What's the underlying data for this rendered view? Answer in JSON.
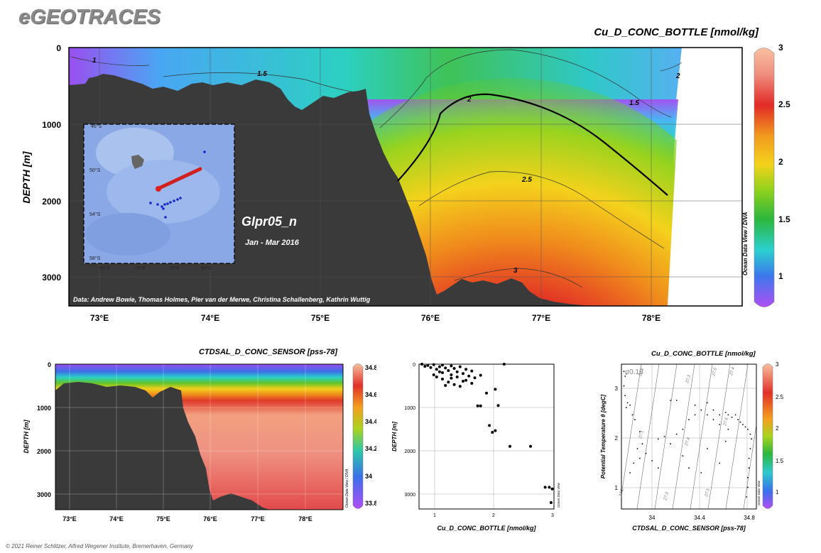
{
  "app": {
    "logo": "eGEOTRACES",
    "copyright": "© 2021 Reiner Schlitzer, Alfred Wegener Institute, Bremerhaven, Germany"
  },
  "main": {
    "title": "Cu_D_CONC_BOTTLE [nmol/kg]",
    "ylabel": "DEPTH [m]",
    "xticks": [
      "73°E",
      "74°E",
      "75°E",
      "76°E",
      "77°E",
      "78°E"
    ],
    "yticks": [
      "0",
      "1000",
      "2000",
      "3000"
    ],
    "colorbar_ticks": [
      "3",
      "2.5",
      "2",
      "1.5",
      "1"
    ],
    "colorbar_label": "Ocean Data View / DIVA",
    "contour_labels": [
      "1",
      "1.5",
      "2",
      "2.5",
      "3",
      "1.5",
      "2"
    ],
    "data_credit": "Data: Andrew Bowie, Thomas Holmes, Pier van der Merwe, Christina Schallenberg, Kathrin Wuttig",
    "cruise": "GIpr05_n",
    "period": "Jan - Mar 2016",
    "inset": {
      "lat_ticks": [
        "46°S",
        "50°S",
        "54°S",
        "58°S"
      ],
      "lon_ticks": [
        "65°E",
        "70°E",
        "75°E",
        "80°E"
      ]
    }
  },
  "salinity": {
    "title": "CTDSAL_D_CONC_SENSOR [pss-78]",
    "ylabel": "DEPTH [m]",
    "xticks": [
      "73°E",
      "74°E",
      "75°E",
      "76°E",
      "77°E",
      "78°E"
    ],
    "yticks": [
      "0",
      "1000",
      "2000",
      "3000"
    ],
    "colorbar_ticks": [
      "34.8",
      "34.6",
      "34.4",
      "34.2",
      "34",
      "33.8"
    ],
    "colorbar_label": "Ocean Data View / DIVA"
  },
  "scatter": {
    "xlabel": "Cu_D_CONC_BOTTLE [nmol/kg]",
    "ylabel": "DEPTH [m]",
    "xticks": [
      "1",
      "2",
      "3"
    ],
    "yticks": [
      "0",
      "1000",
      "2000",
      "3000"
    ],
    "side_label": "Ocean Data View"
  },
  "ts": {
    "title": "Cu_D_CONC_BOTTLE [nmol/kg]",
    "xlabel": "CTDSAL_D_CONC_SENSOR [pss-78]",
    "ylabel": "Potential Temperature θ [degC]",
    "xticks": [
      "34",
      "34.4",
      "34.8"
    ],
    "yticks": [
      "3",
      "2",
      "1"
    ],
    "sigma_label": "σ0.13",
    "isopycnal_labels": [
      "27.2",
      "27.3",
      "27.4",
      "27.5",
      "27.6",
      "27.1",
      "27.2",
      "27.3",
      "27.4",
      "27.5"
    ],
    "colorbar_ticks": [
      "3",
      "2.5",
      "2",
      "1.5",
      "1"
    ],
    "colorbar_label": "Ocean Data View"
  },
  "chart_data": [
    {
      "type": "heatmap",
      "title": "Cu_D_CONC_BOTTLE [nmol/kg]",
      "xlabel": "",
      "ylabel": "DEPTH [m]",
      "xlim": [
        72.7,
        78.85
      ],
      "ylim": [
        3400,
        0
      ],
      "zlim": [
        0.75,
        3
      ],
      "contours": [
        1,
        1.5,
        2,
        2.5,
        3
      ],
      "bathymetry_max_depth_m": 3400
    },
    {
      "type": "heatmap",
      "title": "CTDSAL_D_CONC_SENSOR [pss-78]",
      "xlabel": "",
      "ylabel": "DEPTH [m]",
      "xlim": [
        72.7,
        78.8
      ],
      "ylim": [
        3400,
        0
      ],
      "zlim": [
        33.7,
        34.82
      ]
    },
    {
      "type": "scatter",
      "xlabel": "Cu_D_CONC_BOTTLE [nmol/kg]",
      "ylabel": "DEPTH [m]",
      "xlim": [
        0.7,
        3
      ],
      "ylim": [
        3400,
        0
      ],
      "points": [
        [
          0.75,
          0
        ],
        [
          0.8,
          50
        ],
        [
          0.85,
          30
        ],
        [
          0.9,
          80
        ],
        [
          0.95,
          10
        ],
        [
          1.0,
          120
        ],
        [
          1.05,
          60
        ],
        [
          1.1,
          20
        ],
        [
          1.1,
          200
        ],
        [
          1.15,
          90
        ],
        [
          1.2,
          150
        ],
        [
          1.25,
          40
        ],
        [
          1.25,
          250
        ],
        [
          1.3,
          100
        ],
        [
          1.35,
          180
        ],
        [
          1.35,
          300
        ],
        [
          1.4,
          60
        ],
        [
          1.45,
          220
        ],
        [
          1.5,
          120
        ],
        [
          1.5,
          380
        ],
        [
          1.55,
          280
        ],
        [
          1.6,
          160
        ],
        [
          1.6,
          450
        ],
        [
          1.1,
          350
        ],
        [
          1.2,
          420
        ],
        [
          1.3,
          480
        ],
        [
          1.4,
          520
        ],
        [
          1.0,
          300
        ],
        [
          0.95,
          250
        ],
        [
          1.15,
          500
        ],
        [
          1.7,
          980
        ],
        [
          1.75,
          980
        ],
        [
          1.85,
          680
        ],
        [
          2.05,
          970
        ],
        [
          2.0,
          590
        ],
        [
          2.15,
          0
        ],
        [
          1.9,
          1440
        ],
        [
          1.95,
          1600
        ],
        [
          2.0,
          1560
        ],
        [
          2.25,
          1930
        ],
        [
          2.6,
          1930
        ],
        [
          2.85,
          2890
        ],
        [
          2.92,
          2890
        ],
        [
          2.97,
          2930
        ],
        [
          2.95,
          3250
        ],
        [
          1.65,
          320
        ],
        [
          1.75,
          260
        ],
        [
          1.25,
          330
        ],
        [
          1.45,
          400
        ],
        [
          1.05,
          180
        ]
      ]
    },
    {
      "type": "scatter",
      "xlabel": "CTDSAL_D_CONC_SENSOR [pss-78]",
      "ylabel": "Potential Temperature θ [degC]",
      "xlim": [
        33.75,
        34.85
      ],
      "ylim": [
        0.35,
        3.35
      ],
      "points": [
        [
          33.77,
          3.2
        ],
        [
          33.78,
          3.1
        ],
        [
          33.79,
          3.15
        ],
        [
          33.77,
          2.9
        ],
        [
          33.78,
          2.7
        ],
        [
          33.8,
          2.55
        ],
        [
          33.82,
          2.5
        ],
        [
          33.79,
          2.45
        ],
        [
          33.84,
          2.3
        ],
        [
          33.86,
          2.2
        ],
        [
          33.9,
          1.95
        ],
        [
          33.92,
          1.7
        ],
        [
          33.88,
          1.6
        ],
        [
          33.85,
          1.3
        ],
        [
          33.9,
          1.4
        ],
        [
          33.82,
          1.1
        ],
        [
          33.95,
          1.5
        ],
        [
          34.0,
          1.35
        ],
        [
          34.05,
          1.8
        ],
        [
          34.1,
          1.85
        ],
        [
          34.15,
          1.7
        ],
        [
          34.2,
          1.9
        ],
        [
          34.25,
          2.0
        ],
        [
          34.3,
          2.2
        ],
        [
          34.35,
          2.3
        ],
        [
          34.4,
          2.4
        ],
        [
          34.45,
          2.3
        ],
        [
          34.5,
          2.2
        ],
        [
          34.55,
          2.3
        ],
        [
          34.6,
          2.35
        ],
        [
          34.62,
          2.3
        ],
        [
          34.65,
          2.25
        ],
        [
          34.68,
          2.3
        ],
        [
          34.7,
          2.2
        ],
        [
          34.72,
          2.15
        ],
        [
          34.74,
          2.1
        ],
        [
          34.76,
          2.05
        ],
        [
          34.78,
          2.0
        ],
        [
          34.8,
          1.9
        ],
        [
          34.81,
          1.8
        ],
        [
          34.8,
          1.6
        ],
        [
          34.79,
          1.4
        ],
        [
          34.79,
          1.2
        ],
        [
          34.78,
          1.0
        ],
        [
          34.78,
          0.8
        ],
        [
          34.77,
          0.6
        ],
        [
          34.2,
          2.6
        ],
        [
          34.35,
          2.5
        ],
        [
          34.5,
          2.4
        ],
        [
          34.55,
          2.1
        ],
        [
          34.3,
          1.2
        ],
        [
          34.4,
          1.1
        ],
        [
          34.55,
          1.3
        ],
        [
          34.45,
          1.6
        ],
        [
          34.6,
          1.75
        ],
        [
          34.25,
          1.45
        ],
        [
          34.05,
          1.2
        ],
        [
          34.15,
          2.6
        ],
        [
          34.45,
          2.55
        ],
        [
          34.62,
          2.0
        ]
      ]
    }
  ]
}
